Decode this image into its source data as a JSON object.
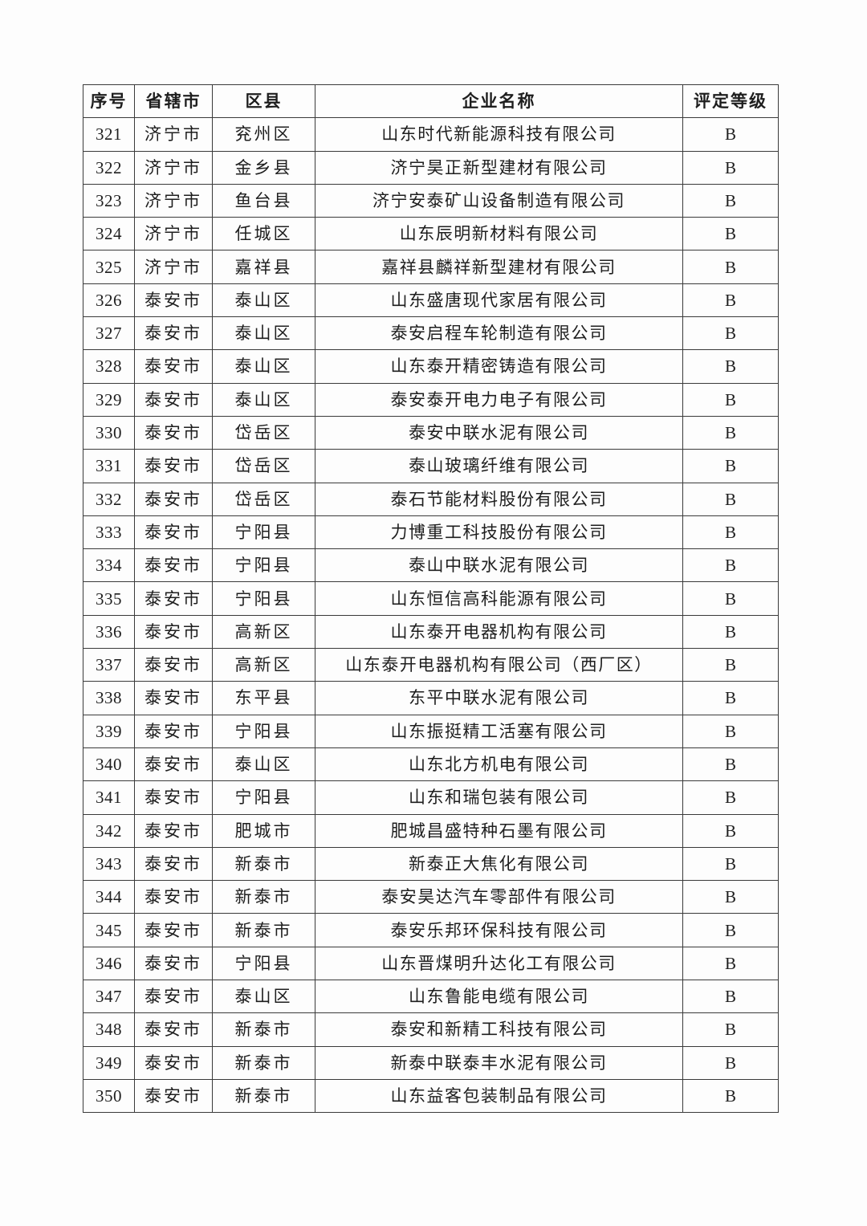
{
  "colors": {
    "page_background": "#fdfdfd",
    "table_border": "#3a3a3a",
    "text": "#1e1e1e"
  },
  "table": {
    "headers": [
      "序号",
      "省辖市",
      "区县",
      "企业名称",
      "评定等级"
    ],
    "rows": [
      [
        "321",
        "济宁市",
        "兖州区",
        "山东时代新能源科技有限公司",
        "B"
      ],
      [
        "322",
        "济宁市",
        "金乡县",
        "济宁昊正新型建材有限公司",
        "B"
      ],
      [
        "323",
        "济宁市",
        "鱼台县",
        "济宁安泰矿山设备制造有限公司",
        "B"
      ],
      [
        "324",
        "济宁市",
        "任城区",
        "山东辰明新材料有限公司",
        "B"
      ],
      [
        "325",
        "济宁市",
        "嘉祥县",
        "嘉祥县麟祥新型建材有限公司",
        "B"
      ],
      [
        "326",
        "泰安市",
        "泰山区",
        "山东盛唐现代家居有限公司",
        "B"
      ],
      [
        "327",
        "泰安市",
        "泰山区",
        "泰安启程车轮制造有限公司",
        "B"
      ],
      [
        "328",
        "泰安市",
        "泰山区",
        "山东泰开精密铸造有限公司",
        "B"
      ],
      [
        "329",
        "泰安市",
        "泰山区",
        "泰安泰开电力电子有限公司",
        "B"
      ],
      [
        "330",
        "泰安市",
        "岱岳区",
        "泰安中联水泥有限公司",
        "B"
      ],
      [
        "331",
        "泰安市",
        "岱岳区",
        "泰山玻璃纤维有限公司",
        "B"
      ],
      [
        "332",
        "泰安市",
        "岱岳区",
        "泰石节能材料股份有限公司",
        "B"
      ],
      [
        "333",
        "泰安市",
        "宁阳县",
        "力博重工科技股份有限公司",
        "B"
      ],
      [
        "334",
        "泰安市",
        "宁阳县",
        "泰山中联水泥有限公司",
        "B"
      ],
      [
        "335",
        "泰安市",
        "宁阳县",
        "山东恒信高科能源有限公司",
        "B"
      ],
      [
        "336",
        "泰安市",
        "高新区",
        "山东泰开电器机构有限公司",
        "B"
      ],
      [
        "337",
        "泰安市",
        "高新区",
        "山东泰开电器机构有限公司（西厂区）",
        "B"
      ],
      [
        "338",
        "泰安市",
        "东平县",
        "东平中联水泥有限公司",
        "B"
      ],
      [
        "339",
        "泰安市",
        "宁阳县",
        "山东振挺精工活塞有限公司",
        "B"
      ],
      [
        "340",
        "泰安市",
        "泰山区",
        "山东北方机电有限公司",
        "B"
      ],
      [
        "341",
        "泰安市",
        "宁阳县",
        "山东和瑞包装有限公司",
        "B"
      ],
      [
        "342",
        "泰安市",
        "肥城市",
        "肥城昌盛特种石墨有限公司",
        "B"
      ],
      [
        "343",
        "泰安市",
        "新泰市",
        "新泰正大焦化有限公司",
        "B"
      ],
      [
        "344",
        "泰安市",
        "新泰市",
        "泰安昊达汽车零部件有限公司",
        "B"
      ],
      [
        "345",
        "泰安市",
        "新泰市",
        "泰安乐邦环保科技有限公司",
        "B"
      ],
      [
        "346",
        "泰安市",
        "宁阳县",
        "山东晋煤明升达化工有限公司",
        "B"
      ],
      [
        "347",
        "泰安市",
        "泰山区",
        "山东鲁能电缆有限公司",
        "B"
      ],
      [
        "348",
        "泰安市",
        "新泰市",
        "泰安和新精工科技有限公司",
        "B"
      ],
      [
        "349",
        "泰安市",
        "新泰市",
        "新泰中联泰丰水泥有限公司",
        "B"
      ],
      [
        "350",
        "泰安市",
        "新泰市",
        "山东益客包装制品有限公司",
        "B"
      ]
    ]
  }
}
